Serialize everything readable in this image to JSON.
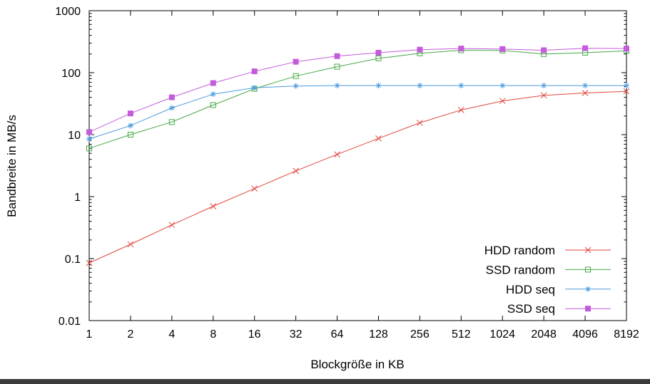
{
  "window": {
    "bottom_bar_color": "#3b3b3b",
    "background_color": "#ffffff"
  },
  "chart_data": {
    "type": "line",
    "title": "",
    "xlabel": "Blockgröße in KB",
    "ylabel": "Bandbreite in MB/s",
    "x_scale": "log2",
    "y_scale": "log10",
    "xlim": [
      1,
      8192
    ],
    "ylim": [
      0.01,
      1000
    ],
    "x": [
      1,
      2,
      4,
      8,
      16,
      32,
      64,
      128,
      256,
      512,
      1024,
      2048,
      4096,
      8192
    ],
    "y_ticks": [
      1000,
      100,
      10,
      1,
      0.1,
      0.01
    ],
    "grid": false,
    "legend_position": "inside-bottom-right",
    "axis_color": "#000000",
    "series": [
      {
        "name": "HDD random",
        "color": "#e0453c",
        "marker": "x",
        "values": [
          0.085,
          0.17,
          0.35,
          0.7,
          1.35,
          2.6,
          4.8,
          8.7,
          15.5,
          25,
          35,
          43,
          47,
          50
        ]
      },
      {
        "name": "SSD random",
        "color": "#46a946",
        "marker": "square-open",
        "values": [
          6,
          10,
          16,
          30,
          55,
          88,
          125,
          170,
          205,
          230,
          228,
          200,
          210,
          225
        ]
      },
      {
        "name": "HDD seq",
        "color": "#4a9ade",
        "marker": "asterisk",
        "values": [
          8.5,
          14,
          27,
          45,
          57,
          61,
          62,
          62,
          62,
          62,
          62,
          62,
          62,
          62
        ]
      },
      {
        "name": "SSD seq",
        "color": "#c35bdb",
        "marker": "square-filled",
        "values": [
          11,
          22,
          40,
          68,
          105,
          150,
          185,
          210,
          235,
          245,
          240,
          230,
          248,
          245
        ]
      }
    ]
  }
}
